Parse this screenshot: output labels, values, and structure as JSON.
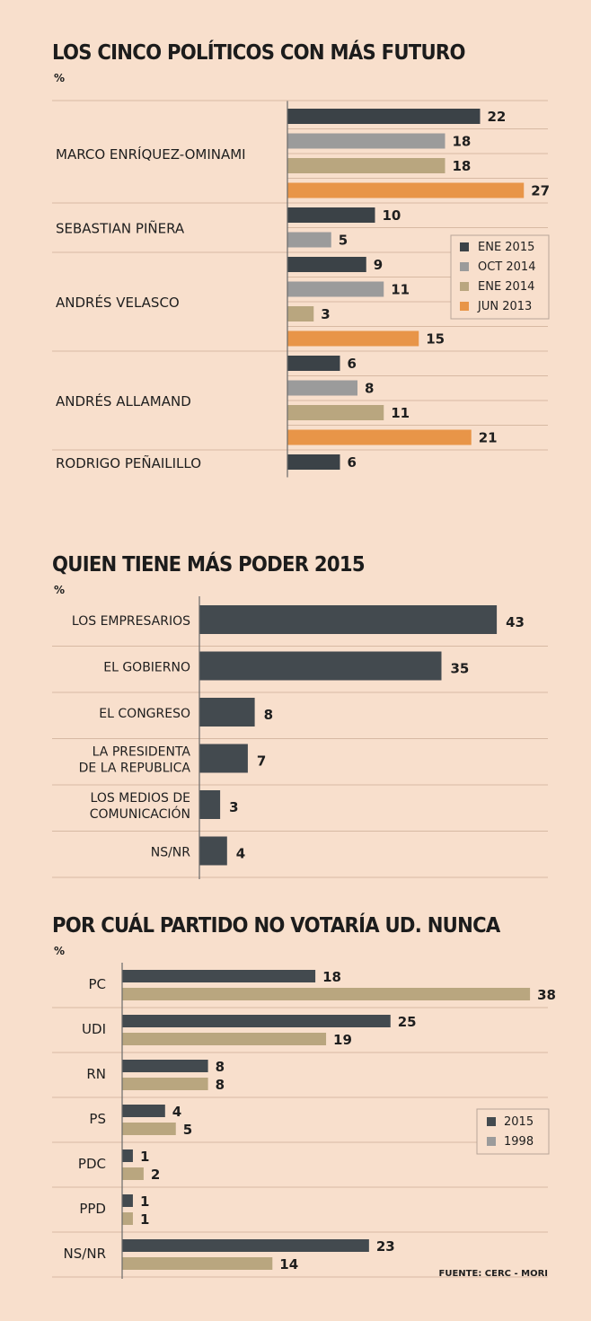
{
  "chart_data": [
    {
      "type": "bar",
      "orientation": "horizontal",
      "title": "LOS CINCO POLÍTICOS CON MÁS FUTURO",
      "unit": "%",
      "legend_position": "right",
      "colors": {
        "ENE 2015": "#3b4247",
        "OCT 2014": "#9b9b9b",
        "ENE 2014": "#b9a67f",
        "JUN 2013": "#e89548"
      },
      "series_order": [
        "ENE 2015",
        "OCT 2014",
        "ENE 2014",
        "JUN 2013"
      ],
      "categories": [
        {
          "name": "MARCO ENRÍQUEZ-OMINAMI",
          "values": [
            {
              "series": "ENE 2015",
              "value": 22
            },
            {
              "series": "OCT 2014",
              "value": 18
            },
            {
              "series": "ENE 2014",
              "value": 18
            },
            {
              "series": "JUN 2013",
              "value": 27
            }
          ]
        },
        {
          "name": "SEBASTIAN PIÑERA",
          "values": [
            {
              "series": "ENE 2015",
              "value": 10
            },
            {
              "series": "OCT 2014",
              "value": 5
            }
          ]
        },
        {
          "name": "ANDRÉS VELASCO",
          "values": [
            {
              "series": "ENE 2015",
              "value": 9
            },
            {
              "series": "OCT 2014",
              "value": 11
            },
            {
              "series": "ENE 2014",
              "value": 3
            },
            {
              "series": "JUN 2013",
              "value": 15
            }
          ]
        },
        {
          "name": "ANDRÉS ALLAMAND",
          "values": [
            {
              "series": "ENE 2015",
              "value": 6
            },
            {
              "series": "OCT 2014",
              "value": 8
            },
            {
              "series": "ENE 2014",
              "value": 11
            },
            {
              "series": "JUN 2013",
              "value": 21
            }
          ]
        },
        {
          "name": "RODRIGO PEÑAILILLO",
          "values": [
            {
              "series": "ENE 2015",
              "value": 6
            }
          ]
        }
      ]
    },
    {
      "type": "bar",
      "orientation": "horizontal",
      "title": "QUIEN TIENE MÁS PODER 2015",
      "unit": "%",
      "color": "#434a4f",
      "categories": [
        {
          "label_lines": [
            "LOS EMPRESARIOS"
          ],
          "value": 43
        },
        {
          "label_lines": [
            "EL GOBIERNO"
          ],
          "value": 35
        },
        {
          "label_lines": [
            "EL CONGRESO"
          ],
          "value": 8
        },
        {
          "label_lines": [
            "LA PRESIDENTA",
            "DE LA REPUBLICA"
          ],
          "value": 7
        },
        {
          "label_lines": [
            "LOS MEDIOS DE",
            "COMUNICACIÓN"
          ],
          "value": 3
        },
        {
          "label_lines": [
            "NS/NR"
          ],
          "value": 4
        }
      ]
    },
    {
      "type": "bar",
      "orientation": "horizontal",
      "title": "POR CUÁL PARTIDO NO VOTARÍA UD. NUNCA",
      "unit": "%",
      "legend_position": "right",
      "categories": [
        "PC",
        "UDI",
        "RN",
        "PS",
        "PDC",
        "PPD",
        "NS/NR"
      ],
      "series": [
        {
          "name": "2015",
          "color": "#434a4f",
          "values": [
            18,
            25,
            8,
            4,
            1,
            1,
            23
          ]
        },
        {
          "name": "1998",
          "color": "#b9a67f",
          "values": [
            38,
            19,
            8,
            5,
            2,
            1,
            14
          ]
        }
      ]
    }
  ],
  "legend1_extra_color": "#9b9b9b",
  "source": "FUENTE: CERC - MORI"
}
